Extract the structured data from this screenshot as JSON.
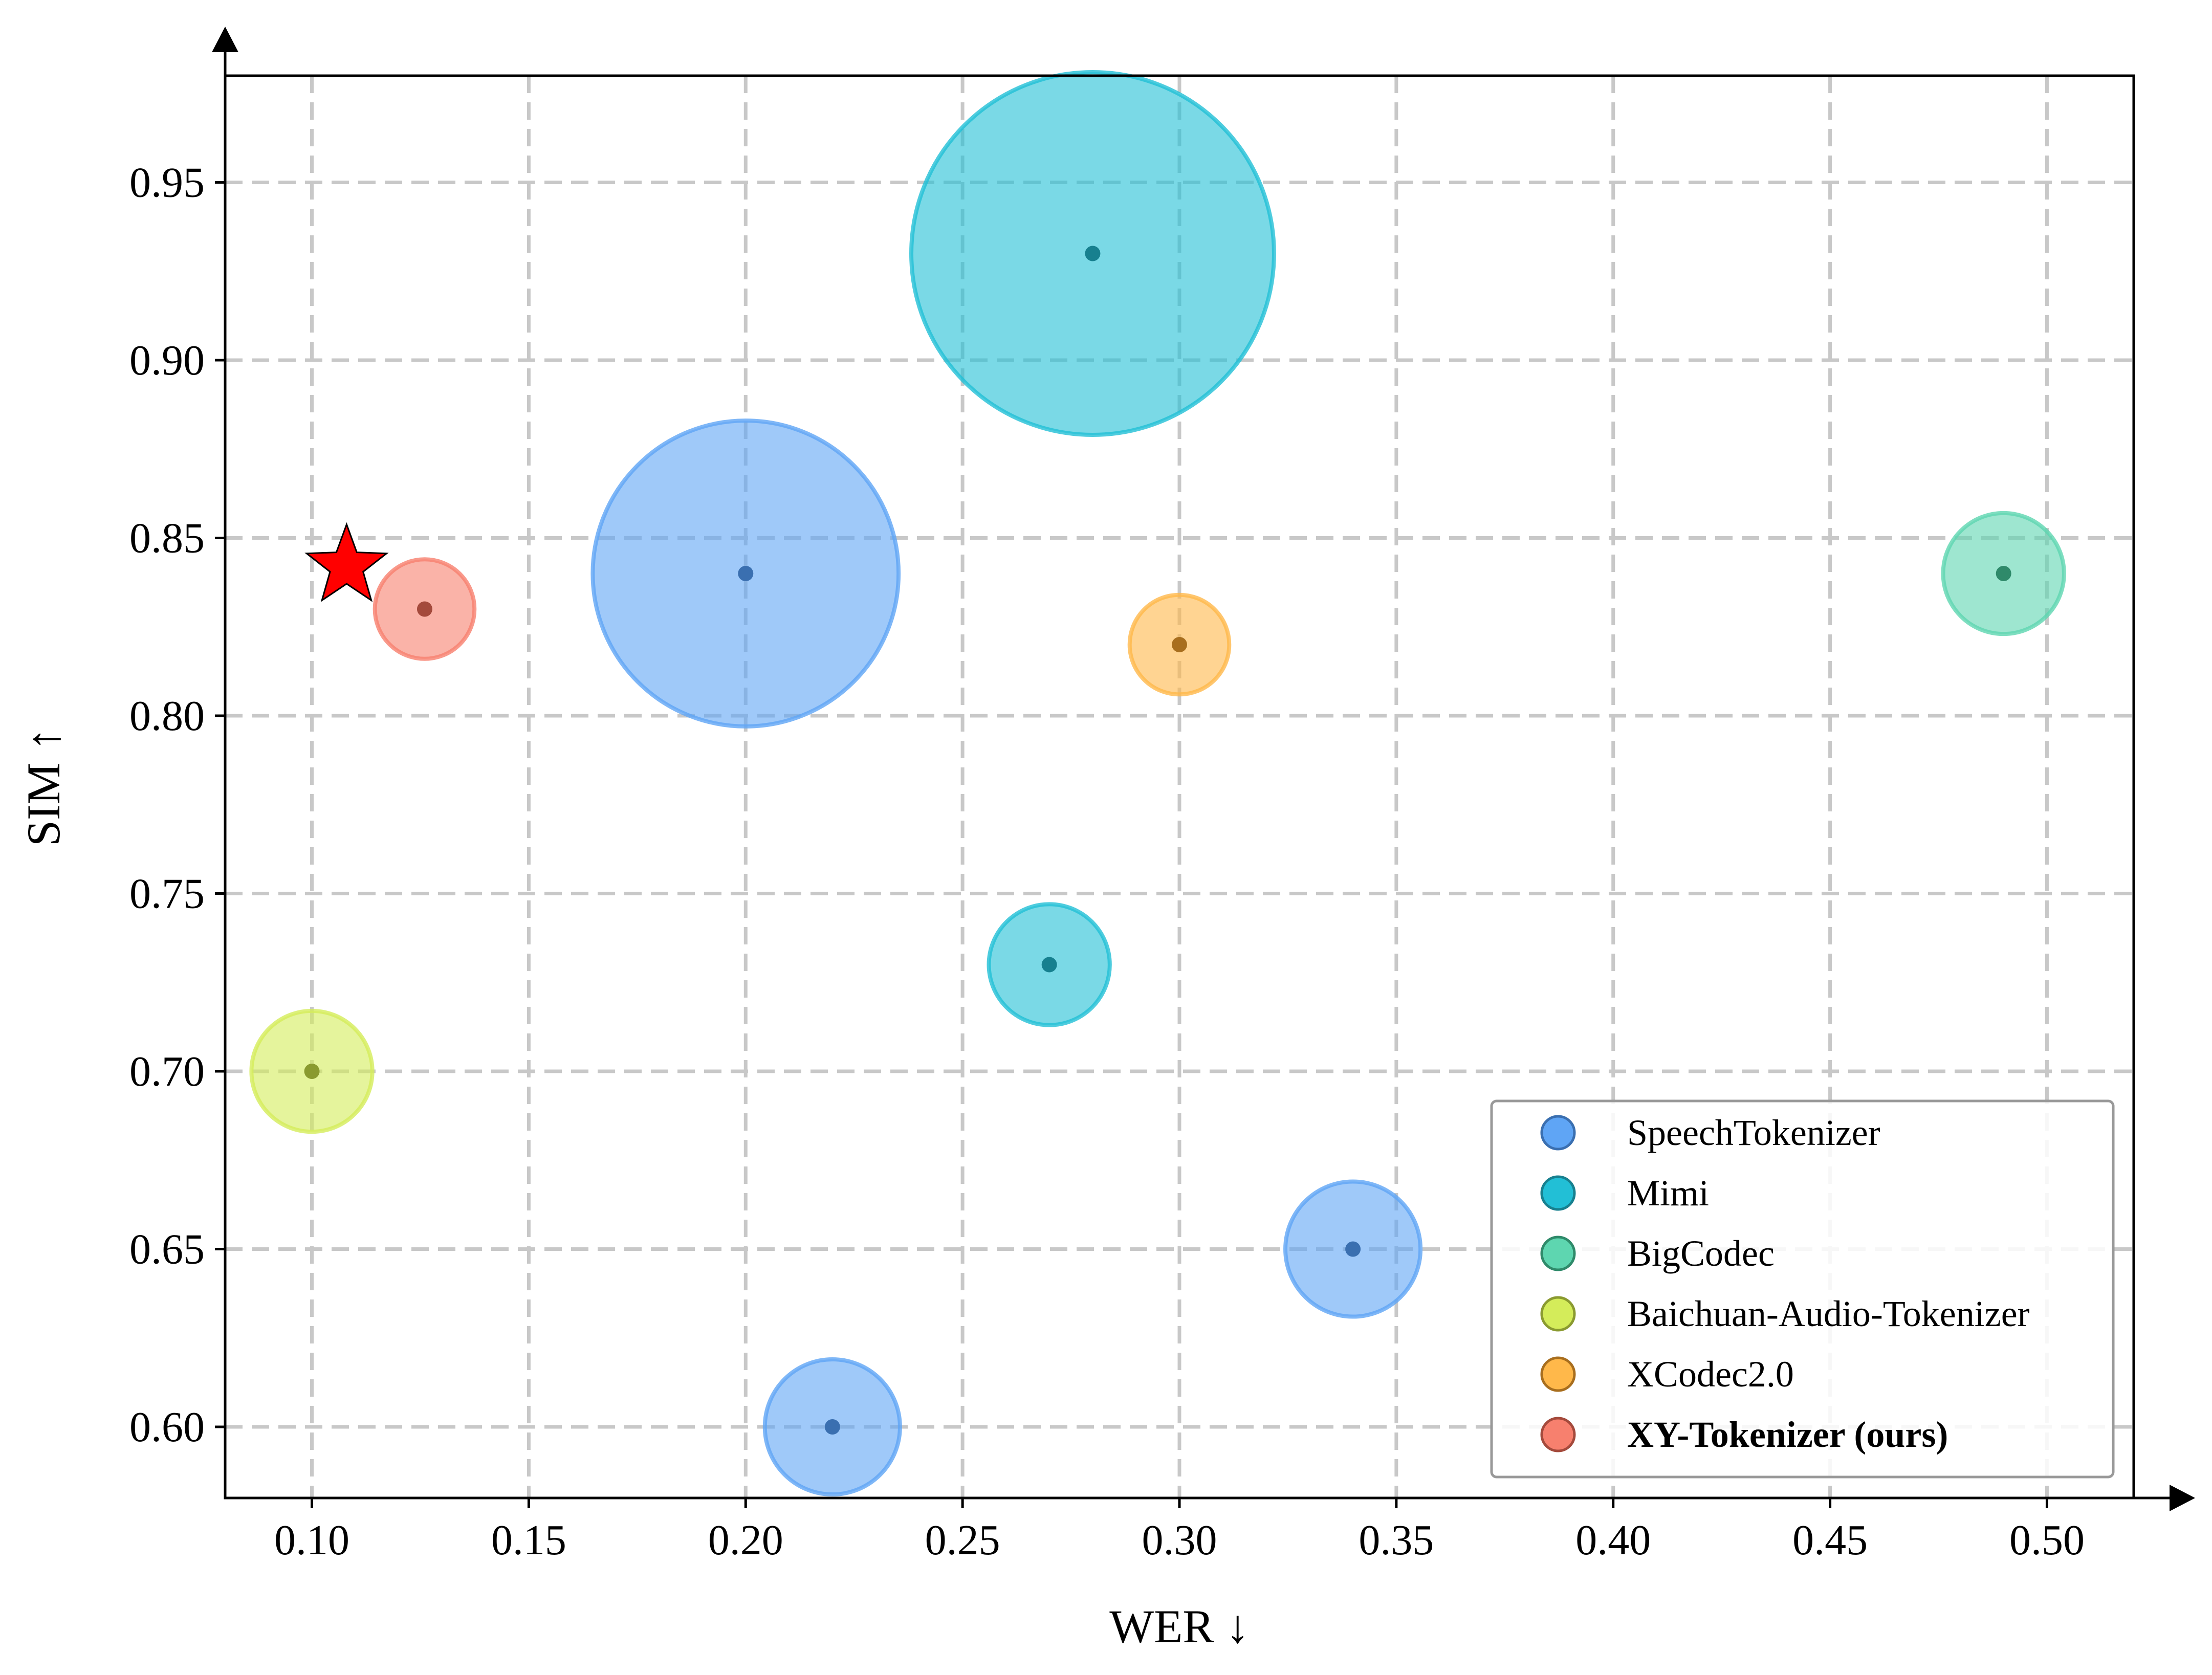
{
  "chart_data": {
    "type": "scatter",
    "subtype": "bubble",
    "xlabel": "WER ↓",
    "ylabel": "SIM ↑",
    "xlim": [
      0.08,
      0.52
    ],
    "ylim": [
      0.58,
      0.98
    ],
    "x_ticks": [
      0.1,
      0.15,
      0.2,
      0.25,
      0.3,
      0.35,
      0.4,
      0.45,
      0.5
    ],
    "y_ticks": [
      0.6,
      0.65,
      0.7,
      0.75,
      0.8,
      0.85,
      0.9,
      0.95
    ],
    "x_tick_labels": [
      "0.10",
      "0.15",
      "0.20",
      "0.25",
      "0.30",
      "0.35",
      "0.40",
      "0.45",
      "0.50"
    ],
    "y_tick_labels": [
      "0.60",
      "0.65",
      "0.70",
      "0.75",
      "0.80",
      "0.85",
      "0.90",
      "0.95"
    ],
    "grid": true,
    "legend_position": "bottom-right",
    "series": [
      {
        "name": "SpeechTokenizer",
        "color": "#5fa5f5",
        "center_color": "#3a6fb0",
        "bold": false,
        "points": [
          {
            "x": 0.2,
            "y": 0.84,
            "radius_y_units": 0.043
          },
          {
            "x": 0.34,
            "y": 0.65,
            "radius_y_units": 0.019
          },
          {
            "x": 0.22,
            "y": 0.6,
            "radius_y_units": 0.019
          }
        ]
      },
      {
        "name": "Mimi",
        "color": "#22bfd6",
        "center_color": "#17808f",
        "bold": false,
        "points": [
          {
            "x": 0.28,
            "y": 0.93,
            "radius_y_units": 0.051
          },
          {
            "x": 0.27,
            "y": 0.73,
            "radius_y_units": 0.017
          }
        ]
      },
      {
        "name": "BigCodec",
        "color": "#5ed6b0",
        "center_color": "#2f8a6a",
        "bold": false,
        "points": [
          {
            "x": 0.49,
            "y": 0.84,
            "radius_y_units": 0.017
          }
        ]
      },
      {
        "name": "Baichuan-Audio-Tokenizer",
        "color": "#d4ec5a",
        "center_color": "#8a9a30",
        "bold": false,
        "points": [
          {
            "x": 0.1,
            "y": 0.7,
            "radius_y_units": 0.017
          }
        ]
      },
      {
        "name": "XCodec2.0",
        "color": "#ffb84a",
        "center_color": "#a86e1e",
        "bold": false,
        "points": [
          {
            "x": 0.3,
            "y": 0.82,
            "radius_y_units": 0.014
          }
        ]
      },
      {
        "name": "XY-Tokenizer (ours)",
        "color": "#f7806e",
        "center_color": "#a44a3c",
        "bold": true,
        "points": [
          {
            "x": 0.126,
            "y": 0.83,
            "radius_y_units": 0.014
          }
        ]
      }
    ],
    "annotations": [
      {
        "type": "star",
        "x": 0.108,
        "y": 0.842,
        "color": "#ff0000"
      }
    ]
  }
}
